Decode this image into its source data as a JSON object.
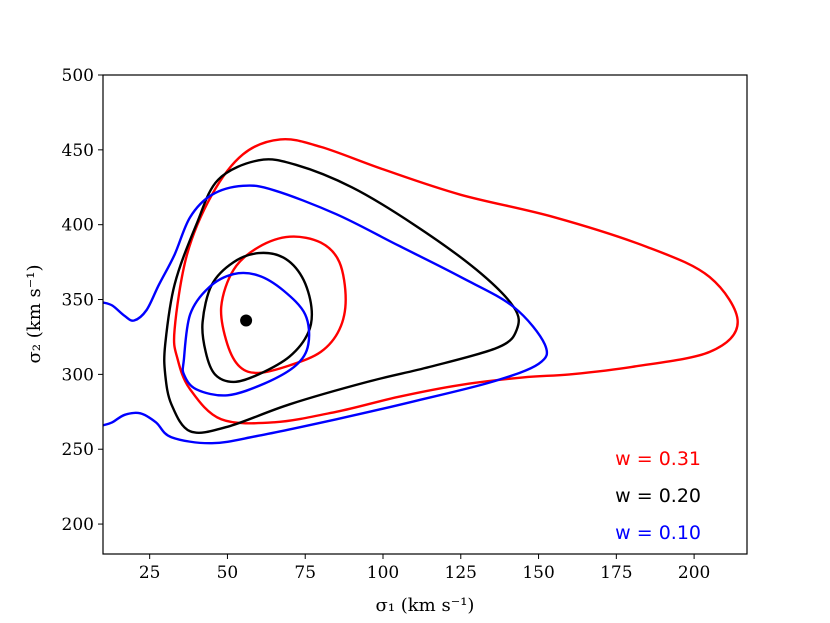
{
  "chart_data": {
    "type": "line",
    "xlabel": "σ₁ (km s⁻¹)",
    "ylabel": "σ₂ (km s⁻¹)",
    "xlim": [
      10,
      217
    ],
    "ylim": [
      180,
      500
    ],
    "xticks": [
      25,
      50,
      75,
      100,
      125,
      150,
      175,
      200
    ],
    "yticks": [
      200,
      250,
      300,
      350,
      400,
      450,
      500
    ],
    "grid": false,
    "legend_placement": "bottom-right",
    "marker": {
      "x": 56,
      "y": 336,
      "color": "#000000"
    },
    "series": [
      {
        "name": "w = 0.31",
        "color": "#ff0000",
        "contours": [
          [
            [
              33,
              330
            ],
            [
              37,
              380
            ],
            [
              45,
              420
            ],
            [
              55,
              447
            ],
            [
              67,
              457
            ],
            [
              80,
              452
            ],
            [
              100,
              437
            ],
            [
              125,
              420
            ],
            [
              155,
              405
            ],
            [
              185,
              385
            ],
            [
              205,
              365
            ],
            [
              214,
              335
            ],
            [
              205,
              315
            ],
            [
              180,
              305
            ],
            [
              160,
              300
            ],
            [
              145,
              298
            ],
            [
              125,
              293
            ],
            [
              105,
              285
            ],
            [
              85,
              275
            ],
            [
              65,
              268
            ],
            [
              48,
              270
            ],
            [
              38,
              290
            ],
            [
              34,
              310
            ]
          ],
          [
            [
              48,
              345
            ],
            [
              52,
              370
            ],
            [
              60,
              385
            ],
            [
              70,
              392
            ],
            [
              80,
              388
            ],
            [
              86,
              375
            ],
            [
              88,
              350
            ],
            [
              86,
              330
            ],
            [
              80,
              315
            ],
            [
              70,
              306
            ],
            [
              60,
              301
            ],
            [
              54,
              305
            ],
            [
              50,
              320
            ]
          ]
        ]
      },
      {
        "name": "w = 0.20",
        "color": "#000000",
        "contours": [
          [
            [
              30,
              320
            ],
            [
              33,
              360
            ],
            [
              40,
              400
            ],
            [
              47,
              430
            ],
            [
              60,
              443
            ],
            [
              72,
              440
            ],
            [
              90,
              425
            ],
            [
              110,
              400
            ],
            [
              130,
              370
            ],
            [
              142,
              345
            ],
            [
              143,
              330
            ],
            [
              137,
              318
            ],
            [
              115,
              305
            ],
            [
              95,
              295
            ],
            [
              70,
              280
            ],
            [
              50,
              265
            ],
            [
              38,
              262
            ],
            [
              32,
              280
            ],
            [
              30,
              300
            ]
          ],
          [
            [
              42,
              335
            ],
            [
              45,
              360
            ],
            [
              52,
              375
            ],
            [
              60,
              381
            ],
            [
              68,
              378
            ],
            [
              74,
              365
            ],
            [
              77,
              345
            ],
            [
              76,
              328
            ],
            [
              70,
              312
            ],
            [
              60,
              300
            ],
            [
              52,
              295
            ],
            [
              46,
              300
            ],
            [
              43,
              315
            ]
          ]
        ]
      },
      {
        "name": "w = 0.10",
        "color": "#0000ff",
        "contours": [
          [
            [
              10,
              348
            ],
            [
              13,
              346
            ],
            [
              17,
              339
            ],
            [
              20,
              336
            ],
            [
              24,
              343
            ],
            [
              28,
              360
            ],
            [
              33,
              380
            ],
            [
              38,
              405
            ],
            [
              45,
              420
            ],
            [
              55,
              426
            ],
            [
              65,
              423
            ],
            [
              85,
              407
            ],
            [
              105,
              386
            ],
            [
              125,
              365
            ],
            [
              142,
              345
            ],
            [
              152,
              320
            ],
            [
              150,
              307
            ],
            [
              135,
              295
            ],
            [
              110,
              282
            ],
            [
              85,
              270
            ],
            [
              60,
              259
            ],
            [
              45,
              254
            ],
            [
              32,
              258
            ],
            [
              27,
              268
            ],
            [
              22,
              274
            ],
            [
              17,
              273
            ],
            [
              13,
              268
            ],
            [
              10,
              266
            ]
          ],
          [
            [
              36,
              310
            ],
            [
              38,
              340
            ],
            [
              44,
              358
            ],
            [
              52,
              367
            ],
            [
              60,
              366
            ],
            [
              68,
              356
            ],
            [
              75,
              340
            ],
            [
              76,
              320
            ],
            [
              72,
              306
            ],
            [
              62,
              294
            ],
            [
              50,
              286
            ],
            [
              40,
              290
            ],
            [
              36,
              300
            ]
          ]
        ]
      }
    ]
  }
}
